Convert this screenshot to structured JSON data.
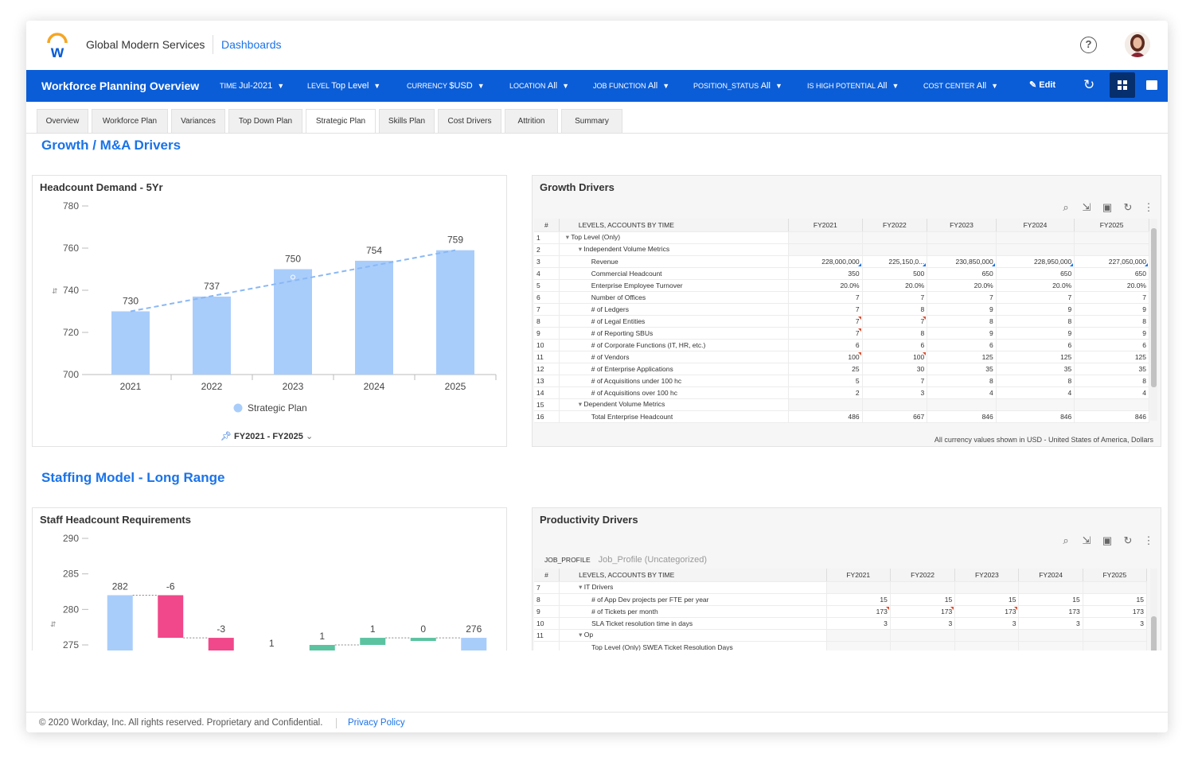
{
  "header": {
    "tenant": "Global Modern Services",
    "dashboards_link": "Dashboards",
    "help_glyph": "?"
  },
  "nav": {
    "title": "Workforce Planning Overview",
    "filters": [
      {
        "label": "TIME",
        "value": "Jul-2021"
      },
      {
        "label": "LEVEL",
        "value": "Top Level"
      },
      {
        "label": "CURRENCY",
        "value": "$USD"
      },
      {
        "label": "LOCATION",
        "value": "All"
      },
      {
        "label": "JOB FUNCTION",
        "value": "All"
      },
      {
        "label": "POSITION_STATUS",
        "value": "All"
      },
      {
        "label": "IS HIGH POTENTIAL",
        "value": "All"
      },
      {
        "label": "COST CENTER",
        "value": "All"
      }
    ],
    "edit_label": "Edit"
  },
  "tabs": [
    "Overview",
    "Workforce Plan",
    "Variances",
    "Top Down Plan",
    "Strategic Plan",
    "Skills Plan",
    "Cost Drivers",
    "Attrition",
    "Summary"
  ],
  "active_tab": "Strategic Plan",
  "sections": {
    "growth": "Growth / M&A Drivers",
    "staffing": "Staffing Model - Long Range"
  },
  "headcount_demand": {
    "title": "Headcount Demand - 5Yr",
    "range_label": "FY2021 - FY2025",
    "chart_data": {
      "type": "bar",
      "title": "Headcount Demand - 5Yr",
      "categories": [
        "2021",
        "2022",
        "2023",
        "2024",
        "2025"
      ],
      "series": [
        {
          "name": "Strategic Plan",
          "values": [
            730,
            737,
            750,
            754,
            759
          ]
        }
      ],
      "trendline": "dashed",
      "ylim": [
        700,
        780
      ],
      "yticks": [
        700,
        720,
        740,
        760,
        780
      ],
      "bar_color": "#a9cdfb",
      "trend_color": "#8ab8f5",
      "legend": "bottom"
    }
  },
  "growth_drivers": {
    "title": "Growth Drivers",
    "columns": [
      "#",
      "LEVELS, ACCOUNTS BY TIME",
      "FY2021",
      "FY2022",
      "FY2023",
      "FY2024",
      "FY2025"
    ],
    "rows": [
      {
        "n": "1",
        "indent": 0,
        "expand": true,
        "label": "Top Level (Only)",
        "vals": [
          "",
          "",
          "",
          "",
          ""
        ]
      },
      {
        "n": "2",
        "indent": 1,
        "expand": true,
        "label": "Independent Volume Metrics",
        "vals": [
          "",
          "",
          "",
          "",
          ""
        ]
      },
      {
        "n": "3",
        "indent": 2,
        "label": "Revenue",
        "vals": [
          "228,000,000",
          "225,150,0...",
          "230,850,000",
          "228,950,000",
          "227,050,000"
        ],
        "blue": true
      },
      {
        "n": "4",
        "indent": 2,
        "label": "Commercial Headcount",
        "vals": [
          "350",
          "500",
          "650",
          "650",
          "650"
        ]
      },
      {
        "n": "5",
        "indent": 2,
        "label": "Enterprise Employee Turnover",
        "vals": [
          "20.0%",
          "20.0%",
          "20.0%",
          "20.0%",
          "20.0%"
        ]
      },
      {
        "n": "6",
        "indent": 2,
        "label": "Number of Offices",
        "vals": [
          "7",
          "7",
          "7",
          "7",
          "7"
        ]
      },
      {
        "n": "7",
        "indent": 2,
        "label": "# of Ledgers",
        "vals": [
          "7",
          "8",
          "9",
          "9",
          "9"
        ]
      },
      {
        "n": "8",
        "indent": 2,
        "label": "# of Legal Entities",
        "vals": [
          "7",
          "7",
          "8",
          "8",
          "8"
        ],
        "red": [
          0,
          1
        ]
      },
      {
        "n": "9",
        "indent": 2,
        "label": "# of Reporting SBUs",
        "vals": [
          "7",
          "8",
          "9",
          "9",
          "9"
        ],
        "red": [
          0
        ]
      },
      {
        "n": "10",
        "indent": 2,
        "label": "# of Corporate Functions (IT, HR, etc.)",
        "vals": [
          "6",
          "6",
          "6",
          "6",
          "6"
        ]
      },
      {
        "n": "11",
        "indent": 2,
        "label": "# of Vendors",
        "vals": [
          "100",
          "100",
          "125",
          "125",
          "125"
        ],
        "red": [
          0,
          1
        ]
      },
      {
        "n": "12",
        "indent": 2,
        "label": "# of Enterprise Applications",
        "vals": [
          "25",
          "30",
          "35",
          "35",
          "35"
        ]
      },
      {
        "n": "13",
        "indent": 2,
        "label": "# of Acquisitions under 100 hc",
        "vals": [
          "5",
          "7",
          "8",
          "8",
          "8"
        ]
      },
      {
        "n": "14",
        "indent": 2,
        "label": "# of Acquisitions over 100 hc",
        "vals": [
          "2",
          "3",
          "4",
          "4",
          "4"
        ]
      },
      {
        "n": "15",
        "indent": 1,
        "expand": true,
        "label": "Dependent Volume Metrics",
        "vals": [
          "",
          "",
          "",
          "",
          ""
        ]
      },
      {
        "n": "16",
        "indent": 2,
        "label": "Total Enterprise Headcount",
        "vals": [
          "486",
          "667",
          "846",
          "846",
          "846"
        ]
      }
    ],
    "footnote": "All currency values shown in USD - United States of America, Dollars"
  },
  "staff_headcount": {
    "title": "Staff Headcount Requirements",
    "chart_data": {
      "type": "bar",
      "subtype": "waterfall",
      "title": "Staff Headcount Requirements",
      "steps": [
        {
          "label": "282",
          "value": 282,
          "kind": "total"
        },
        {
          "label": "-6",
          "value": -6,
          "kind": "decrease"
        },
        {
          "label": "-3",
          "value": -3,
          "kind": "decrease"
        },
        {
          "label": "1",
          "value": 1,
          "kind": "increase"
        },
        {
          "label": "1",
          "value": 1,
          "kind": "increase"
        },
        {
          "label": "1",
          "value": 1,
          "kind": "increase"
        },
        {
          "label": "0",
          "value": 0,
          "kind": "increase"
        },
        {
          "label": "276",
          "value": 276,
          "kind": "total"
        }
      ],
      "ylim": [
        275,
        290
      ],
      "yticks": [
        275,
        280,
        285,
        290
      ],
      "colors": {
        "total": "#a9cdfb",
        "decrease": "#f0488a",
        "increase": "#5cc3a1"
      }
    }
  },
  "productivity_drivers": {
    "title": "Productivity Drivers",
    "filter_label": "JOB_PROFILE",
    "filter_value": "Job_Profile (Uncategorized)",
    "columns": [
      "#",
      "LEVELS, ACCOUNTS BY TIME",
      "FY2021",
      "FY2022",
      "FY2023",
      "FY2024",
      "FY2025"
    ],
    "rows": [
      {
        "n": "7",
        "indent": 1,
        "expand": true,
        "label": "IT Drivers",
        "vals": [
          "",
          "",
          "",
          "",
          ""
        ]
      },
      {
        "n": "8",
        "indent": 2,
        "label": "# of App Dev projects per FTE per year",
        "vals": [
          "15",
          "15",
          "15",
          "15",
          "15"
        ]
      },
      {
        "n": "9",
        "indent": 2,
        "label": "# of Tickets per month",
        "vals": [
          "173",
          "173",
          "173",
          "173",
          "173"
        ],
        "red": [
          0,
          1,
          2
        ]
      },
      {
        "n": "10",
        "indent": 2,
        "label": "SLA Ticket resolution time in days",
        "vals": [
          "3",
          "3",
          "3",
          "3",
          "3"
        ]
      },
      {
        "n": "11",
        "indent": 1,
        "expand": true,
        "label": "Op",
        "vals": [
          "",
          "",
          "",
          "",
          ""
        ]
      },
      {
        "n": "",
        "indent": 2,
        "label": "Top Level (Only) SWEA Ticket Resolution Days",
        "vals": [
          "",
          "",
          "",
          "",
          ""
        ]
      }
    ]
  },
  "footer": {
    "copyright": "© 2020 Workday, Inc. All rights reserved. Proprietary and Confidential.",
    "privacy": "Privacy Policy"
  },
  "icons": [
    "workday-logo-icon",
    "help-icon",
    "user-avatar-icon",
    "pencil-icon",
    "refresh-icon",
    "grid-icon",
    "video-icon",
    "search-icon",
    "export-icon",
    "save-icon",
    "more-icon"
  ],
  "colors": {
    "brand": "#0b5dd7",
    "link": "#1a73e8",
    "accent_orange": "#f5a623"
  }
}
